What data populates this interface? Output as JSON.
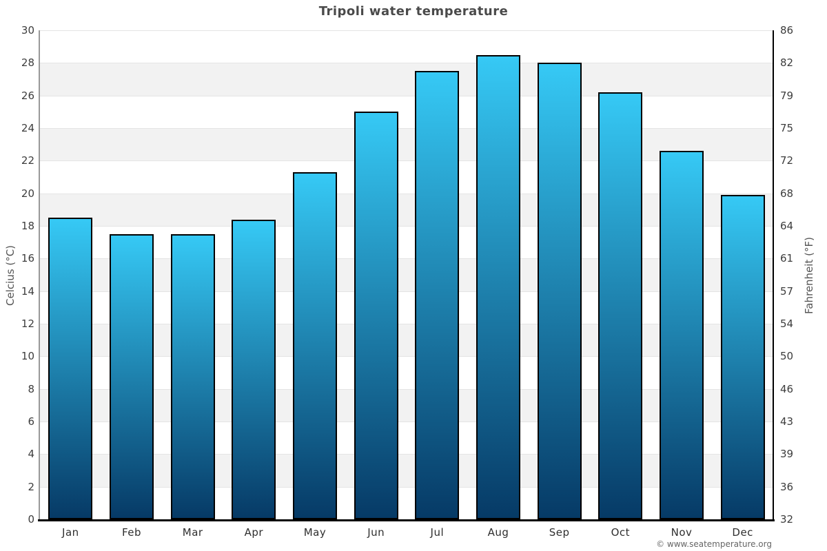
{
  "page": {
    "title": "Tripoli water temperature",
    "credit": "© www.seatemperature.org"
  },
  "chart_data": {
    "type": "bar",
    "title": "Tripoli water temperature",
    "categories": [
      "Jan",
      "Feb",
      "Mar",
      "Apr",
      "May",
      "Jun",
      "Jul",
      "Aug",
      "Sep",
      "Oct",
      "Nov",
      "Dec"
    ],
    "values": [
      18.5,
      17.5,
      17.5,
      18.4,
      21.3,
      25,
      27.5,
      28.5,
      28,
      26.2,
      22.6,
      19.9
    ],
    "unit": "°C",
    "xlabel": "",
    "ylabel_left": "Celcius (°C)",
    "ylabel_right": "Fahrenheit (°F)",
    "ylim": [
      0,
      30
    ],
    "ytick_step": 2,
    "celsius_tick_labels": [
      "30",
      "28",
      "26",
      "24",
      "22",
      "20",
      "18",
      "16",
      "14",
      "12",
      "10",
      "8",
      "6",
      "4",
      "2",
      "0"
    ],
    "fahrenheit_tick_labels": [
      "86",
      "82",
      "79",
      "75",
      "72",
      "68",
      "64",
      "61",
      "57",
      "54",
      "50",
      "46",
      "43",
      "39",
      "36",
      "32"
    ],
    "legend": "none",
    "grid": "horizontal gridlines with alternating background bands",
    "colors": {
      "bar_gradient_top": "#36c9f5",
      "bar_gradient_bottom": "#063a66",
      "bar_border": "#000000",
      "band_light": "#ffffff",
      "band_dark": "#f2f2f2",
      "gridline": "#e4e4e4",
      "left_axis": "#999999",
      "right_axis": "#000000",
      "baseline": "#000000",
      "title": "#4a4a4a",
      "tick_label": "#3c3c3c",
      "credit": "#666666"
    }
  }
}
